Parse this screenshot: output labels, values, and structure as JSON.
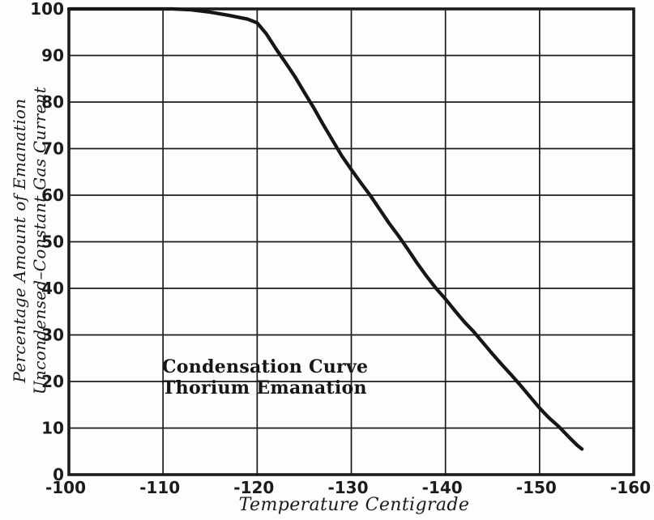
{
  "figure": {
    "background": "#fdfdfc",
    "ink": "#1b1b1b",
    "curve_color": "#161616"
  },
  "chart_data": {
    "type": "line",
    "annotation_lines": [
      "Condensation Curve",
      "Thorium Emanation"
    ],
    "xlabel": "Temperature Centigrade",
    "ylabel_lines": [
      "Percentage Amount of Emanation",
      "Uncondensed–Constant Gas Current"
    ],
    "xlim": [
      -100,
      -160
    ],
    "ylim": [
      0,
      100
    ],
    "xticks": [
      -100,
      -110,
      -120,
      -130,
      -140,
      -150,
      -160
    ],
    "xtick_labels": [
      "-100",
      "-110",
      "-120",
      "-130",
      "-140",
      "-150",
      "-160"
    ],
    "yticks": [
      0,
      10,
      20,
      30,
      40,
      50,
      60,
      70,
      80,
      90,
      100
    ],
    "ytick_labels": [
      "0",
      "10",
      "20",
      "30",
      "40",
      "50",
      "60",
      "70",
      "80",
      "90",
      "100"
    ],
    "grid": true,
    "legend_position": "none",
    "series": [
      {
        "name": "condensation-curve",
        "points": [
          [
            -100,
            100
          ],
          [
            -105,
            100
          ],
          [
            -109,
            100
          ],
          [
            -111,
            100
          ],
          [
            -113,
            99.8
          ],
          [
            -115,
            99.3
          ],
          [
            -117,
            98.6
          ],
          [
            -119,
            97.8
          ],
          [
            -120,
            97
          ],
          [
            -121,
            94.6
          ],
          [
            -122,
            91.4
          ],
          [
            -123,
            88.5
          ],
          [
            -124,
            85.5
          ],
          [
            -125,
            82.1
          ],
          [
            -126,
            78.8
          ],
          [
            -127,
            75.2
          ],
          [
            -128,
            71.8
          ],
          [
            -129,
            68.4
          ],
          [
            -130,
            65.5
          ],
          [
            -131,
            62.7
          ],
          [
            -132,
            60
          ],
          [
            -133,
            57
          ],
          [
            -134,
            54
          ],
          [
            -135,
            51.3
          ],
          [
            -136,
            48.4
          ],
          [
            -137,
            45.4
          ],
          [
            -138,
            42.6
          ],
          [
            -139,
            40
          ],
          [
            -140,
            37.7
          ],
          [
            -141,
            35.2
          ],
          [
            -142,
            32.8
          ],
          [
            -143,
            30.7
          ],
          [
            -144,
            28.3
          ],
          [
            -145,
            25.9
          ],
          [
            -146,
            23.6
          ],
          [
            -147,
            21.4
          ],
          [
            -148,
            19.1
          ],
          [
            -149,
            16.7
          ],
          [
            -150,
            14.3
          ],
          [
            -151,
            12.2
          ],
          [
            -152,
            10.4
          ],
          [
            -153,
            8.3
          ],
          [
            -154,
            6.3
          ],
          [
            -154.5,
            5.5
          ]
        ]
      }
    ]
  }
}
